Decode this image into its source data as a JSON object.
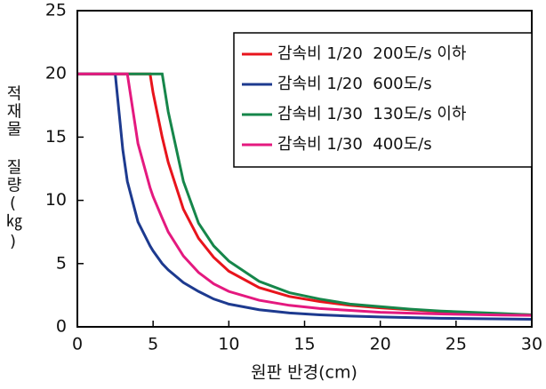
{
  "chart_data": {
    "type": "line",
    "xlabel": "원판 반경(cm)",
    "ylabel": "적재물 질량(㎏)",
    "x": [
      0,
      2.5,
      3,
      3.3,
      4,
      4.8,
      5,
      5.6,
      6,
      7,
      8,
      9,
      10,
      12,
      14,
      16,
      18,
      20,
      22,
      24,
      26,
      28,
      30
    ],
    "series": [
      {
        "name": "감속비 1/20  200도/s 이하",
        "color": "#e8141c",
        "values": [
          20,
          20,
          20,
          20,
          20,
          20,
          18.5,
          15,
          13,
          9.3,
          7.0,
          5.5,
          4.4,
          3.1,
          2.4,
          2.0,
          1.7,
          1.5,
          1.35,
          1.2,
          1.1,
          1.0,
          0.95
        ]
      },
      {
        "name": "감속비 1/20  600도/s",
        "color": "#1d3a8f",
        "values": [
          20,
          20,
          14,
          11.5,
          8.3,
          6.4,
          6.0,
          5.0,
          4.5,
          3.5,
          2.8,
          2.2,
          1.8,
          1.35,
          1.1,
          0.95,
          0.85,
          0.78,
          0.73,
          0.68,
          0.65,
          0.62,
          0.6
        ]
      },
      {
        "name": "감속비 1/30  130도/s 이하",
        "color": "#16864a",
        "values": [
          20,
          20,
          20,
          20,
          20,
          20,
          20,
          20,
          17,
          11.5,
          8.2,
          6.4,
          5.2,
          3.6,
          2.7,
          2.2,
          1.8,
          1.6,
          1.4,
          1.25,
          1.15,
          1.05,
          0.95
        ]
      },
      {
        "name": "감속비 1/30  400도/s",
        "color": "#e4197f",
        "values": [
          20,
          20,
          20,
          20,
          14.5,
          11,
          10.3,
          8.6,
          7.5,
          5.6,
          4.3,
          3.4,
          2.8,
          2.1,
          1.7,
          1.45,
          1.3,
          1.15,
          1.08,
          1.02,
          0.97,
          0.93,
          0.9
        ]
      }
    ],
    "xlim": [
      0,
      30
    ],
    "xticks": [
      0,
      5,
      10,
      15,
      20,
      25,
      30
    ],
    "ylim": [
      0,
      25
    ],
    "yticks": [
      0,
      5,
      10,
      15,
      20,
      25
    ],
    "grid": false
  }
}
